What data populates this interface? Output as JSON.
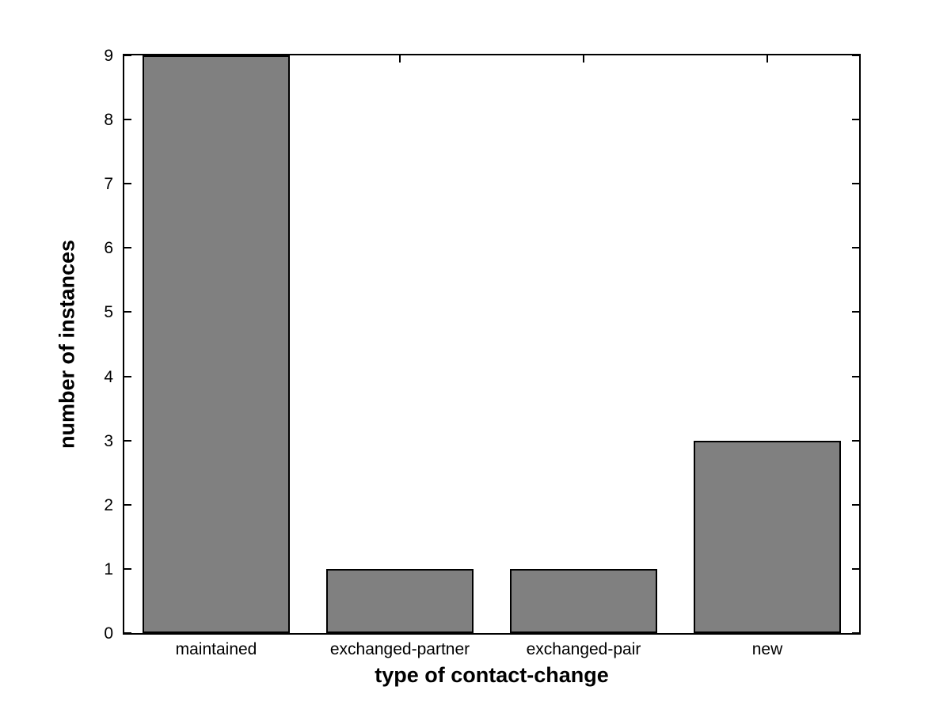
{
  "chart_data": {
    "type": "bar",
    "title": "",
    "categories": [
      "maintained",
      "exchanged-partner",
      "exchanged-pair",
      "new"
    ],
    "values": [
      9,
      1,
      1,
      3
    ],
    "xlabel": "type of contact-change",
    "ylabel": "number of instances",
    "ylim": [
      0,
      9
    ],
    "yticks": [
      0,
      1,
      2,
      3,
      4,
      5,
      6,
      7,
      8,
      9
    ],
    "xlim_units": [
      0.5,
      4.5
    ],
    "bar_relative_width": 0.8,
    "grid": false,
    "legend": null,
    "colors": {
      "bar_fill": "#808080",
      "bar_edge": "#000000",
      "axis": "#000000",
      "background": "#ffffff",
      "text": "#000000"
    }
  }
}
